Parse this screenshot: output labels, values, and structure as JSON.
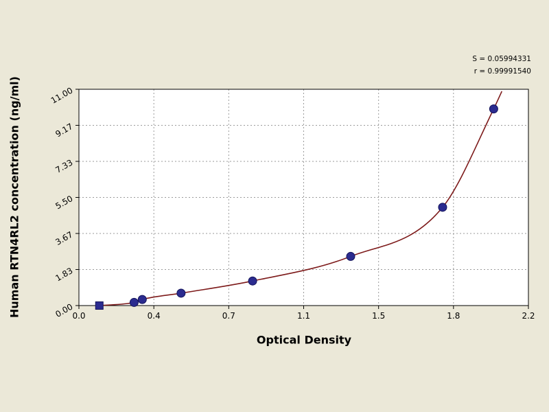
{
  "chart_data": {
    "type": "scatter",
    "title": "",
    "xlabel": "Optical Density",
    "ylabel": "Human RTN4RL2 concentration (ng/ml)",
    "annotations": [
      "S = 0.05994331",
      "r = 0.99991540"
    ],
    "xlim": [
      0,
      2.2
    ],
    "ylim": [
      0,
      11
    ],
    "grid": true,
    "legend": "none",
    "x_ticks": [
      {
        "value": 0.0,
        "label": "0.0"
      },
      {
        "value": 0.3667,
        "label": "0.4"
      },
      {
        "value": 0.7333,
        "label": "0.7"
      },
      {
        "value": 1.1,
        "label": "1.1"
      },
      {
        "value": 1.4667,
        "label": "1.5"
      },
      {
        "value": 1.8333,
        "label": "1.8"
      },
      {
        "value": 2.2,
        "label": "2.2"
      }
    ],
    "y_ticks": [
      {
        "value": 0.0,
        "label": "0.00"
      },
      {
        "value": 1.8333,
        "label": "1.83"
      },
      {
        "value": 3.6667,
        "label": "3.67"
      },
      {
        "value": 5.5,
        "label": "5.50"
      },
      {
        "value": 7.3333,
        "label": "7.33"
      },
      {
        "value": 9.1667,
        "label": "9.17"
      },
      {
        "value": 11.0,
        "label": "11.00"
      }
    ],
    "points": [
      {
        "x": 0.1,
        "y": 0.0,
        "marker": "square"
      },
      {
        "x": 0.27,
        "y": 0.16,
        "marker": "circle"
      },
      {
        "x": 0.31,
        "y": 0.31,
        "marker": "circle"
      },
      {
        "x": 0.5,
        "y": 0.63,
        "marker": "circle"
      },
      {
        "x": 0.85,
        "y": 1.25,
        "marker": "circle"
      },
      {
        "x": 1.33,
        "y": 2.5,
        "marker": "circle"
      },
      {
        "x": 1.78,
        "y": 5.0,
        "marker": "circle"
      },
      {
        "x": 2.03,
        "y": 10.0,
        "marker": "circle"
      }
    ],
    "curve_end": {
      "x": 2.07,
      "y": 10.9
    },
    "colors": {
      "background": "#ebe8d8",
      "plot_background": "#ffffff",
      "grid": "#9a9a9a",
      "axis": "#000000",
      "curve": "#7d1a1a",
      "marker_fill": "#2b2b8f",
      "marker_edge": "#14145a",
      "text": "#000000"
    }
  }
}
